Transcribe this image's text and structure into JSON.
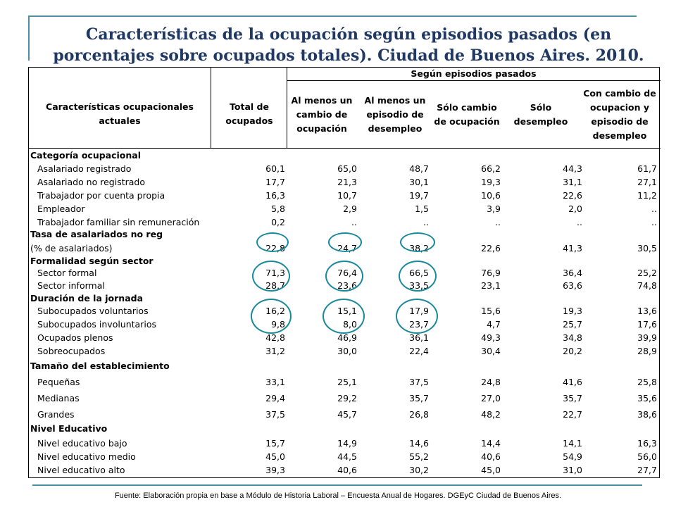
{
  "title": "Características de la ocupación según episodios pasados (en porcentajes sobre ocupados totales). Ciudad de Buenos Aires. 2010.",
  "header": {
    "col0": "Características ocupacionales actuales",
    "col1": "Total de ocupados",
    "group": "Según episodios pasados",
    "col2": "Al menos un cambio de ocupación",
    "col3": "Al menos un episodio de desempleo",
    "col4": "Sólo cambio de ocupación",
    "col5": "Sólo desempleo",
    "col6": "Con cambio de ocupacion y episodio de desempleo"
  },
  "rows": [
    {
      "label": "Categoría ocupacional",
      "section": true,
      "values": []
    },
    {
      "label": "Asalariado registrado",
      "values": [
        "60,1",
        "65,0",
        "48,7",
        "66,2",
        "44,3",
        "61,7"
      ]
    },
    {
      "label": "Asalariado no registrado",
      "values": [
        "17,7",
        "21,3",
        "30,1",
        "19,3",
        "31,1",
        "27,1"
      ]
    },
    {
      "label": "Trabajador por cuenta propia",
      "values": [
        "16,3",
        "10,7",
        "19,7",
        "10,6",
        "22,6",
        "11,2"
      ]
    },
    {
      "label": "Empleador",
      "values": [
        "5,8",
        "2,9",
        "1,5",
        "3,9",
        "2,0",
        ".."
      ]
    },
    {
      "label": "Trabajador familiar sin remuneración",
      "values": [
        "0,2",
        "..",
        "..",
        "..",
        "..",
        ".."
      ]
    },
    {
      "label": "Tasa de asalariados no reg",
      "section": true,
      "values": []
    },
    {
      "label": "(% de asalariados)",
      "sublabel": true,
      "values": [
        "22,8",
        "24,7",
        "38,2",
        "22,6",
        "41,3",
        "30,5"
      ]
    },
    {
      "label": "Formalidad según sector",
      "section": true,
      "values": []
    },
    {
      "label": "Sector formal",
      "values": [
        "71,3",
        "76,4",
        "66,5",
        "76,9",
        "36,4",
        "25,2"
      ]
    },
    {
      "label": "Sector informal",
      "values": [
        "28,7",
        "23,6",
        "33,5",
        "23,1",
        "63,6",
        "74,8"
      ]
    },
    {
      "label": "Duración de la jornada",
      "section": true,
      "values": []
    },
    {
      "label": "Subocupados voluntarios",
      "values": [
        "16,2",
        "15,1",
        "17,9",
        "15,6",
        "19,3",
        "13,6"
      ]
    },
    {
      "label": "Subocupados involuntarios",
      "values": [
        "9,8",
        "8,0",
        "23,7",
        "4,7",
        "25,7",
        "17,6"
      ]
    },
    {
      "label": "Ocupados plenos",
      "values": [
        "42,8",
        "46,9",
        "36,1",
        "49,3",
        "34,8",
        "39,9"
      ]
    },
    {
      "label": "Sobreocupados",
      "values": [
        "31,2",
        "30,0",
        "22,4",
        "30,4",
        "20,2",
        "28,9"
      ]
    },
    {
      "label": "Tamaño del establecimiento",
      "section": true,
      "values": []
    },
    {
      "label": "Pequeñas",
      "values": [
        "33,1",
        "25,1",
        "37,5",
        "24,8",
        "41,6",
        "25,8"
      ]
    },
    {
      "label": "Medianas",
      "values": [
        "29,4",
        "29,2",
        "35,7",
        "27,0",
        "35,7",
        "35,6"
      ]
    },
    {
      "label": "Grandes",
      "values": [
        "37,5",
        "45,7",
        "26,8",
        "48,2",
        "22,7",
        "38,6"
      ]
    },
    {
      "label": "Nivel Educativo",
      "section": true,
      "values": []
    },
    {
      "label": "Nivel educativo bajo",
      "values": [
        "15,7",
        "14,9",
        "14,6",
        "14,4",
        "14,1",
        "16,3"
      ]
    },
    {
      "label": "Nivel educativo medio",
      "values": [
        "45,0",
        "44,5",
        "55,2",
        "40,6",
        "54,9",
        "56,0"
      ]
    },
    {
      "label": "Nivel educativo alto",
      "values": [
        "39,3",
        "40,6",
        "30,2",
        "45,0",
        "31,0",
        "27,7"
      ]
    }
  ],
  "source": "Fuente: Elaboración propia en base a Módulo de Historia Laboral – Encuesta Anual de Hogares. DGEyC Ciudad de Buenos Aires.",
  "colors": {
    "title": "#1f3864",
    "accent": "#4a8fa3",
    "circle": "#1a8a9a"
  }
}
